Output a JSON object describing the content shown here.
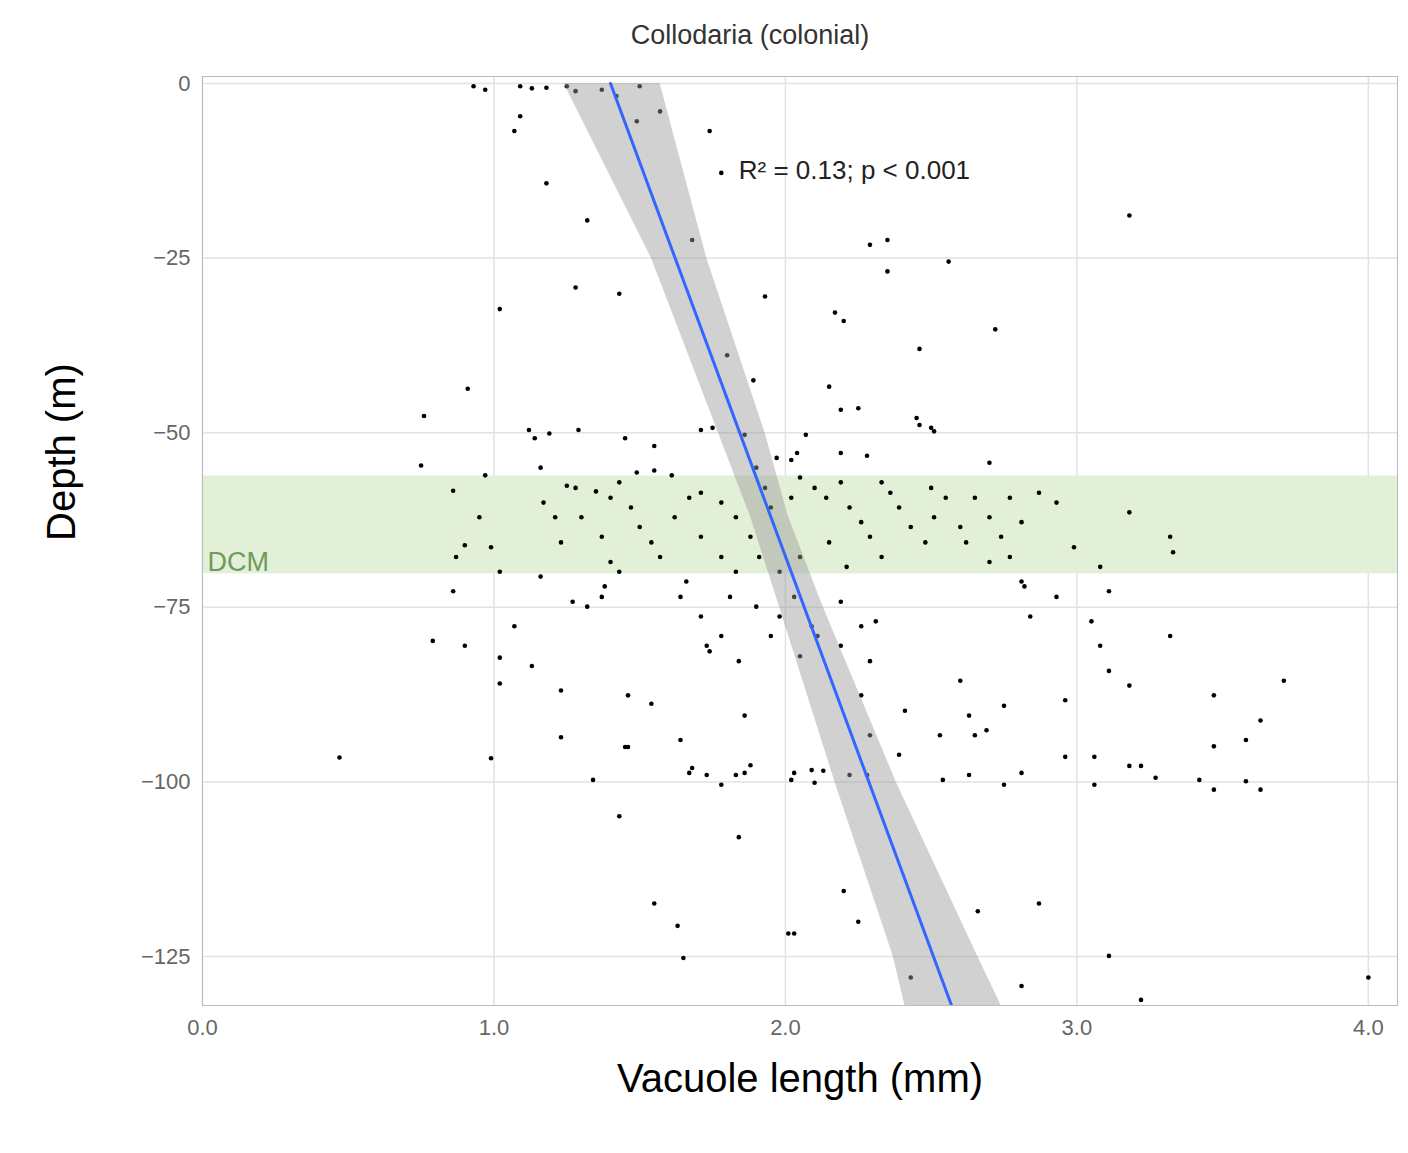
{
  "chart_data": {
    "type": "scatter",
    "title": "Collodaria (colonial)",
    "x_label": "Vacuole length (mm)",
    "y_label": "Depth (m)",
    "color": "#000000",
    "grid": true,
    "xlim": [
      0,
      4.1
    ],
    "ylim": [
      -132,
      1
    ],
    "xticks": [
      0,
      1,
      2,
      3,
      4
    ],
    "yticks": [
      0,
      -25,
      -50,
      -75,
      -100,
      -125
    ],
    "x": [
      0.93,
      0.97,
      1.09,
      1.13,
      1.18,
      1.25,
      1.28,
      1.37,
      1.42,
      1.5,
      1.57,
      1.09,
      1.07,
      1.49,
      1.74,
      1.78,
      1.18,
      1.32,
      1.02,
      1.28,
      1.43,
      1.68,
      1.93,
      2.29,
      2.35,
      2.35,
      2.56,
      3.18,
      2.17,
      2.2,
      2.72,
      2.46,
      1.89,
      2.15,
      2.19,
      2.25,
      0.91,
      0.76,
      1.8,
      1.12,
      1.14,
      1.19,
      1.29,
      1.45,
      1.55,
      1.71,
      1.75,
      1.86,
      2.07,
      2.45,
      2.46,
      2.5,
      2.51,
      1.97,
      2.02,
      2.04,
      2.19,
      2.28,
      2.7,
      0.75,
      0.97,
      0.86,
      0.95,
      0.9,
      0.87,
      0.99,
      1.02,
      1.17,
      1.21,
      1.25,
      1.28,
      1.35,
      1.4,
      1.43,
      1.49,
      1.55,
      1.61,
      1.67,
      1.47,
      1.5,
      1.54,
      1.57,
      1.62,
      1.71,
      1.78,
      1.83,
      1.88,
      1.93,
      1.95,
      2.02,
      2.05,
      2.1,
      2.14,
      2.19,
      2.22,
      2.26,
      2.29,
      2.33,
      2.36,
      2.39,
      2.43,
      2.48,
      2.51,
      2.55,
      2.6,
      2.62,
      2.7,
      2.74,
      2.81,
      2.87,
      2.93,
      2.99,
      3.08,
      3.18,
      3.32,
      3.33,
      1.4,
      1.43,
      1.23,
      1.16,
      1.78,
      1.83,
      1.91,
      1.98,
      2.05,
      2.15,
      2.21,
      2.7,
      2.77,
      1.16,
      1.3,
      1.37,
      1.71,
      1.9,
      2.65,
      2.77,
      2.33,
      2.5,
      0.86,
      0.79,
      0.9,
      1.02,
      1.02,
      1.07,
      1.13,
      1.23,
      1.27,
      1.32,
      1.37,
      1.38,
      1.46,
      1.46,
      1.54,
      1.64,
      1.66,
      1.71,
      1.73,
      1.74,
      1.78,
      1.81,
      1.84,
      1.86,
      1.88,
      1.9,
      1.95,
      1.98,
      2.03,
      2.05,
      2.09,
      2.11,
      2.19,
      2.19,
      2.26,
      2.31,
      2.29,
      2.41,
      2.6,
      2.63,
      2.65,
      2.69,
      2.75,
      2.82,
      2.81,
      2.93,
      2.96,
      3.05,
      3.08,
      3.11,
      3.18,
      3.32,
      3.47,
      3.71,
      3.63,
      3.58,
      3.47,
      3.11,
      2.84,
      2.53,
      2.54,
      2.63,
      2.75,
      2.81,
      2.96,
      3.06,
      3.18,
      3.22,
      3.27,
      3.42,
      3.47,
      3.58,
      3.63,
      3.06,
      2.28,
      2.22,
      2.13,
      2.1,
      2.09,
      2.03,
      2.02,
      1.86,
      1.83,
      1.78,
      1.68,
      1.67,
      1.73,
      1.23,
      1.34,
      1.45,
      1.64,
      2.26,
      2.29,
      2.39,
      1.43,
      1.84,
      1.55,
      1.63,
      1.65,
      2.01,
      2.03,
      2.25,
      2.2,
      2.66,
      2.87,
      3.11,
      2.43,
      2.81,
      3.22,
      4.0,
      0.99,
      0.47
    ],
    "values": [
      -0.4,
      -0.9,
      -0.4,
      -0.7,
      -0.6,
      -0.4,
      -1.1,
      -0.9,
      -1.8,
      -0.4,
      -4.0,
      -4.7,
      -6.8,
      -5.4,
      -6.8,
      -12.8,
      -14.3,
      -19.6,
      -32.3,
      -29.2,
      -30.1,
      -22.4,
      -30.5,
      -23.1,
      -22.4,
      -26.9,
      -25.5,
      -18.9,
      -32.8,
      -34.0,
      -35.2,
      -38.0,
      -42.5,
      -43.4,
      -46.7,
      -46.5,
      -43.7,
      -47.6,
      -38.9,
      -49.6,
      -50.8,
      -50.1,
      -49.6,
      -50.8,
      -51.9,
      -49.6,
      -49.3,
      -50.3,
      -50.3,
      -47.9,
      -48.9,
      -49.3,
      -49.8,
      -53.6,
      -53.9,
      -52.9,
      -52.9,
      -53.3,
      -54.3,
      -54.7,
      -56.1,
      -58.3,
      -62.1,
      -66.1,
      -67.8,
      -66.4,
      -69.9,
      -60.0,
      -62.1,
      -57.6,
      -57.9,
      -58.4,
      -59.3,
      -57.1,
      -55.7,
      -55.4,
      -56.1,
      -59.3,
      -60.7,
      -63.5,
      -65.7,
      -67.8,
      -62.1,
      -58.6,
      -60.0,
      -62.1,
      -64.9,
      -57.9,
      -60.7,
      -59.3,
      -56.4,
      -57.9,
      -59.3,
      -57.1,
      -60.7,
      -62.8,
      -64.9,
      -67.8,
      -58.6,
      -60.7,
      -63.5,
      -65.7,
      -62.1,
      -59.3,
      -63.5,
      -65.7,
      -62.1,
      -64.9,
      -62.8,
      -58.6,
      -60.0,
      -66.4,
      -69.2,
      -61.4,
      -64.9,
      -67.1,
      -68.5,
      -69.9,
      -65.7,
      -70.6,
      -67.8,
      -69.9,
      -67.8,
      -69.9,
      -67.8,
      -65.7,
      -69.2,
      -68.5,
      -67.8,
      -55.0,
      -62.1,
      -64.9,
      -64.9,
      -55.0,
      -59.3,
      -59.3,
      -57.1,
      -57.9,
      -72.7,
      -79.8,
      -80.5,
      -82.2,
      -85.9,
      -77.7,
      -83.4,
      -86.9,
      -74.2,
      -74.9,
      -73.5,
      -72.0,
      -87.6,
      -95.0,
      -88.8,
      -73.5,
      -71.3,
      -76.3,
      -80.5,
      -81.3,
      -79.1,
      -73.5,
      -82.7,
      -90.5,
      -97.6,
      -74.9,
      -79.1,
      -76.3,
      -73.5,
      -82.0,
      -77.7,
      -79.1,
      -80.5,
      -74.2,
      -77.7,
      -77.0,
      -82.7,
      -89.8,
      -85.5,
      -90.5,
      -93.3,
      -92.6,
      -89.1,
      -72.0,
      -71.3,
      -73.5,
      -88.3,
      -77.0,
      -80.5,
      -84.1,
      -86.2,
      -79.1,
      -87.6,
      -85.5,
      -91.2,
      -94.0,
      -94.9,
      -72.7,
      -76.3,
      -93.3,
      -99.7,
      -99.0,
      -100.4,
      -98.7,
      -96.4,
      -96.4,
      -97.7,
      -97.7,
      -99.4,
      -99.7,
      -101.1,
      -99.9,
      -101.1,
      -100.4,
      -99.0,
      -99.0,
      -98.4,
      -100.1,
      -98.3,
      -98.7,
      -99.7,
      -98.7,
      -99.0,
      -100.4,
      -98.0,
      -98.7,
      -99.0,
      -93.6,
      -99.7,
      -95.0,
      -94.0,
      -87.6,
      -93.3,
      -96.1,
      -104.9,
      -107.9,
      -117.4,
      -120.6,
      -125.2,
      -121.7,
      -121.7,
      -120.0,
      -115.6,
      -118.5,
      -117.4,
      -124.9,
      -128.0,
      -129.2,
      -131.2,
      -128.0,
      -96.6,
      -96.5
    ],
    "fit": {
      "type": "line",
      "color": "#3366ff",
      "x": [
        1.4,
        2.57
      ],
      "values": [
        0,
        -132
      ]
    },
    "confidence_band": {
      "color": "#999999",
      "values": [
        0,
        -25,
        -50,
        -62,
        -75,
        -100,
        -125,
        -132
      ],
      "lower": [
        1.24,
        1.54,
        1.77,
        1.88,
        1.98,
        2.17,
        2.37,
        2.41
      ],
      "upper": [
        1.57,
        1.73,
        1.93,
        2.01,
        2.13,
        2.38,
        2.66,
        2.74
      ]
    },
    "shaded_band": {
      "label": "DCM",
      "color": "#e3f0d8",
      "ylim": [
        -70.2,
        -56.2
      ]
    },
    "annotations": [
      {
        "text": "R² = 0.13; p < 0.001",
        "x": 1.84,
        "y": -12.5
      }
    ]
  }
}
